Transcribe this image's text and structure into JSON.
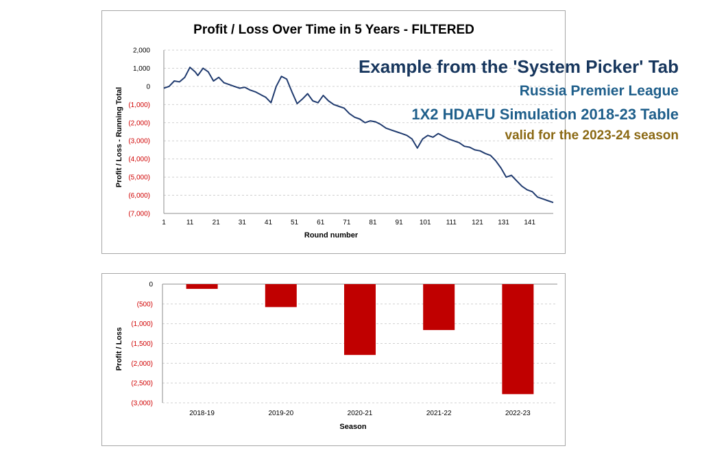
{
  "overlay": {
    "heading": "Example from the 'System Picker' Tab",
    "league": "Russia Premier League",
    "table": "1X2 HDAFU Simulation 2018-23 Table",
    "valid": "valid for the 2023-24 season"
  },
  "colors": {
    "heading": "#17365d",
    "league": "#1f5f8b",
    "valid": "#8b6914",
    "line": "#1f3a6e",
    "bar": "#c00000",
    "negative_tick": "#d00000",
    "grid": "#d0d0d0"
  },
  "chart_data": [
    {
      "type": "line",
      "title": "Profit / Loss Over Time in 5 Years - FILTERED",
      "xlabel": "Round number",
      "ylabel": "Profit / Loss - Running Total",
      "xlim": [
        1,
        150
      ],
      "ylim": [
        -7000,
        2000
      ],
      "grid": "horizontal dashed",
      "x_ticks": [
        1,
        11,
        21,
        31,
        41,
        51,
        61,
        71,
        81,
        91,
        101,
        111,
        121,
        131,
        141
      ],
      "y_ticks": [
        {
          "value": 2000,
          "label": "2,000"
        },
        {
          "value": 1000,
          "label": "1,000"
        },
        {
          "value": 0,
          "label": "0"
        },
        {
          "value": -1000,
          "label": "(1,000)"
        },
        {
          "value": -2000,
          "label": "(2,000)"
        },
        {
          "value": -3000,
          "label": "(3,000)"
        },
        {
          "value": -4000,
          "label": "(4,000)"
        },
        {
          "value": -5000,
          "label": "(5,000)"
        },
        {
          "value": -6000,
          "label": "(6,000)"
        },
        {
          "value": -7000,
          "label": "(7,000)"
        }
      ],
      "points": [
        [
          1,
          -100
        ],
        [
          3,
          0
        ],
        [
          5,
          300
        ],
        [
          7,
          250
        ],
        [
          9,
          500
        ],
        [
          11,
          1050
        ],
        [
          13,
          800
        ],
        [
          14,
          600
        ],
        [
          16,
          1000
        ],
        [
          18,
          800
        ],
        [
          20,
          300
        ],
        [
          22,
          500
        ],
        [
          24,
          200
        ],
        [
          26,
          100
        ],
        [
          28,
          0
        ],
        [
          30,
          -100
        ],
        [
          32,
          -50
        ],
        [
          34,
          -200
        ],
        [
          36,
          -300
        ],
        [
          38,
          -450
        ],
        [
          40,
          -600
        ],
        [
          42,
          -900
        ],
        [
          44,
          0
        ],
        [
          46,
          550
        ],
        [
          48,
          400
        ],
        [
          50,
          -300
        ],
        [
          52,
          -950
        ],
        [
          54,
          -700
        ],
        [
          56,
          -400
        ],
        [
          58,
          -800
        ],
        [
          60,
          -900
        ],
        [
          62,
          -500
        ],
        [
          64,
          -800
        ],
        [
          66,
          -1000
        ],
        [
          68,
          -1100
        ],
        [
          70,
          -1200
        ],
        [
          72,
          -1500
        ],
        [
          74,
          -1700
        ],
        [
          76,
          -1800
        ],
        [
          78,
          -2000
        ],
        [
          80,
          -1900
        ],
        [
          82,
          -1950
        ],
        [
          84,
          -2100
        ],
        [
          86,
          -2300
        ],
        [
          88,
          -2400
        ],
        [
          90,
          -2500
        ],
        [
          92,
          -2600
        ],
        [
          94,
          -2700
        ],
        [
          96,
          -2900
        ],
        [
          98,
          -3400
        ],
        [
          100,
          -2900
        ],
        [
          102,
          -2700
        ],
        [
          104,
          -2800
        ],
        [
          106,
          -2600
        ],
        [
          108,
          -2750
        ],
        [
          110,
          -2900
        ],
        [
          112,
          -3000
        ],
        [
          114,
          -3100
        ],
        [
          116,
          -3300
        ],
        [
          118,
          -3350
        ],
        [
          120,
          -3500
        ],
        [
          122,
          -3550
        ],
        [
          124,
          -3700
        ],
        [
          126,
          -3800
        ],
        [
          128,
          -4100
        ],
        [
          130,
          -4500
        ],
        [
          132,
          -5000
        ],
        [
          134,
          -4900
        ],
        [
          136,
          -5200
        ],
        [
          138,
          -5500
        ],
        [
          140,
          -5700
        ],
        [
          142,
          -5800
        ],
        [
          144,
          -6100
        ],
        [
          146,
          -6200
        ],
        [
          148,
          -6300
        ],
        [
          150,
          -6400
        ]
      ]
    },
    {
      "type": "bar",
      "xlabel": "Season",
      "ylabel": "Profit / Loss",
      "ylim": [
        -3000,
        0
      ],
      "grid": "horizontal dashed",
      "categories": [
        "2018-19",
        "2019-20",
        "2020-21",
        "2021-22",
        "2022-23"
      ],
      "values": [
        -120,
        -580,
        -1790,
        -1160,
        -2780
      ],
      "y_ticks": [
        {
          "value": 0,
          "label": "0"
        },
        {
          "value": -500,
          "label": "(500)"
        },
        {
          "value": -1000,
          "label": "(1,000)"
        },
        {
          "value": -1500,
          "label": "(1,500)"
        },
        {
          "value": -2000,
          "label": "(2,000)"
        },
        {
          "value": -2500,
          "label": "(2,500)"
        },
        {
          "value": -3000,
          "label": "(3,000)"
        }
      ]
    }
  ]
}
